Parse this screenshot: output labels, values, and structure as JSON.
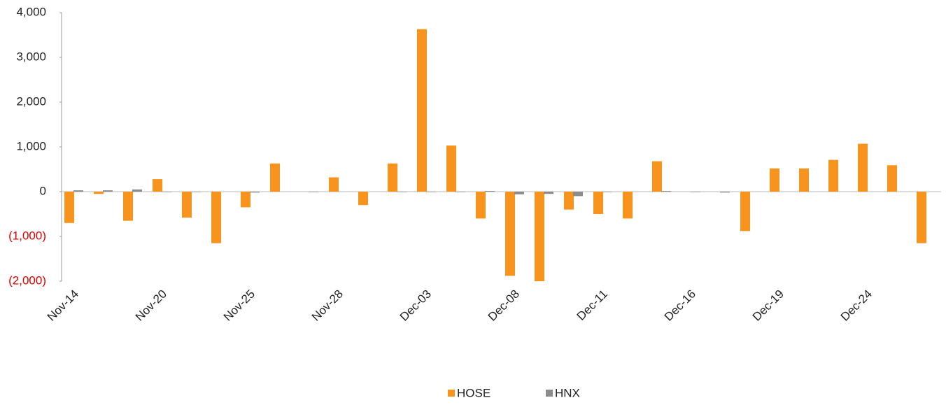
{
  "chart_data": {
    "type": "bar",
    "categories": [
      "Nov-14",
      null,
      null,
      "Nov-20",
      null,
      null,
      "Nov-25",
      null,
      null,
      "Nov-28",
      null,
      null,
      "Dec-03",
      null,
      null,
      "Dec-08",
      null,
      null,
      "Dec-11",
      null,
      null,
      "Dec-16",
      null,
      null,
      "Dec-19",
      null,
      null,
      "Dec-24",
      null,
      null
    ],
    "series": [
      {
        "name": "HOSE",
        "color": "#f7941d",
        "values": [
          -700,
          -50,
          -650,
          280,
          -580,
          -1150,
          -350,
          630,
          0,
          320,
          -300,
          630,
          3630,
          1030,
          -600,
          -1880,
          -2000,
          -400,
          -500,
          -600,
          680,
          0,
          0,
          -880,
          520,
          520,
          710,
          1070,
          590,
          -1150
        ]
      },
      {
        "name": "HNX",
        "color": "#8c8c8c",
        "values": [
          30,
          30,
          50,
          -10,
          -10,
          0,
          -20,
          0,
          -10,
          0,
          0,
          -10,
          -10,
          -10,
          15,
          -60,
          -50,
          -100,
          -10,
          0,
          15,
          -10,
          -20,
          0,
          0,
          0,
          0,
          0,
          0,
          0
        ]
      }
    ],
    "ylim": [
      -2000,
      4000
    ],
    "yticks": [
      {
        "value": -2000,
        "label": "(2,000)"
      },
      {
        "value": -1000,
        "label": "(1,000)"
      },
      0,
      {
        "value": 1000,
        "label": "1,000"
      },
      {
        "value": 2000,
        "label": "2,000"
      },
      {
        "value": 3000,
        "label": "3,000"
      },
      {
        "value": 4000,
        "label": "4,000"
      }
    ],
    "negative_tick_color": "#e00000",
    "grid": false,
    "legend": "bottom"
  }
}
